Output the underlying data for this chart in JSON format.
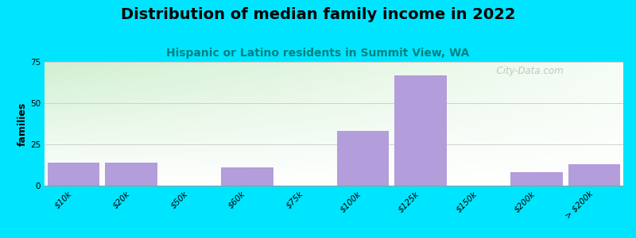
{
  "title": "Distribution of median family income in 2022",
  "subtitle": "Hispanic or Latino residents in Summit View, WA",
  "categories": [
    "$10k",
    "$20k",
    "$50k",
    "$60k",
    "$75k",
    "$100k",
    "$125k",
    "$150k",
    "$200k",
    "> $200k"
  ],
  "values": [
    14,
    14,
    0,
    11,
    0,
    33,
    67,
    0,
    8,
    13
  ],
  "bar_color": "#b39ddb",
  "bar_width": 0.9,
  "ylabel": "families",
  "ylim": [
    0,
    75
  ],
  "yticks": [
    0,
    25,
    50,
    75
  ],
  "bg_color": "#00e5ff",
  "title_fontsize": 14,
  "subtitle_fontsize": 10,
  "subtitle_color": "#008080",
  "watermark": "  City-Data.com",
  "grid_color": "#cccccc",
  "ylabel_fontsize": 9,
  "tick_fontsize": 7.5
}
